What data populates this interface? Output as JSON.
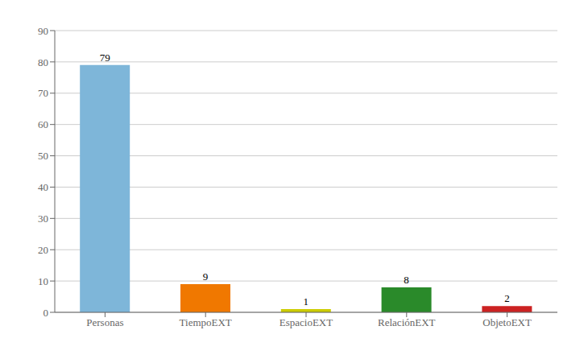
{
  "chart_data": {
    "type": "bar",
    "categories": [
      "Personas",
      "TiempoEXT",
      "EspacioEXT",
      "RelaciónEXT",
      "ObjetoEXT"
    ],
    "values": [
      79,
      9,
      1,
      8,
      2
    ],
    "colors": [
      "#7eb6d9",
      "#f07800",
      "#cccc00",
      "#2a8a2a",
      "#cc2222"
    ],
    "ylim": [
      0,
      90
    ],
    "yticks": [
      0,
      10,
      20,
      30,
      40,
      50,
      60,
      70,
      80,
      90
    ],
    "grid": true,
    "data_labels": true
  }
}
